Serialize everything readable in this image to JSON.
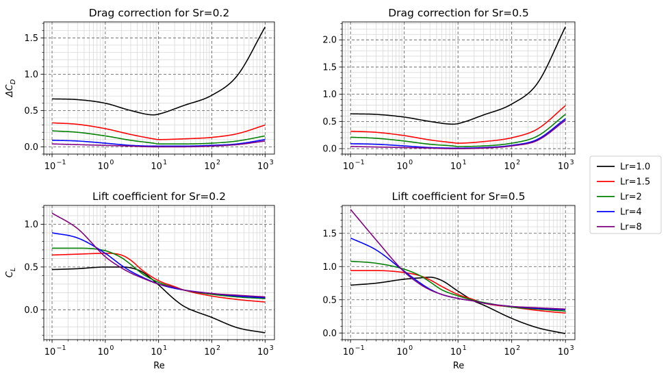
{
  "chart_data": [
    {
      "type": "line",
      "title": "Drag correction for Sr=0.2",
      "xlabel": "",
      "ylabel": "ΔC_D",
      "xscale": "log",
      "xlim": [
        0.07,
        1500
      ],
      "ylim": [
        -0.1,
        1.72
      ],
      "xticks": [
        0.1,
        1,
        10,
        100,
        1000
      ],
      "xtick_labels": [
        "10",
        "10",
        "10",
        "10",
        "10"
      ],
      "xtick_exponents": [
        "−1",
        "0",
        "1",
        "2",
        "3"
      ],
      "yticks": [
        0,
        0.5,
        1,
        1.5
      ],
      "ytick_labels": [
        "0.0",
        "0.5",
        "1.0",
        "1.5"
      ],
      "grid": true,
      "x": [
        0.1,
        0.3,
        1,
        3,
        8,
        10,
        30,
        100,
        300,
        1000
      ],
      "series": [
        {
          "name": "Lr=1.0",
          "color": "#000000",
          "values": [
            0.66,
            0.65,
            0.6,
            0.5,
            0.44,
            0.45,
            0.57,
            0.71,
            0.98,
            1.65
          ]
        },
        {
          "name": "Lr=1.5",
          "color": "#ff0000",
          "values": [
            0.33,
            0.31,
            0.25,
            0.17,
            0.11,
            0.1,
            0.11,
            0.13,
            0.18,
            0.3
          ]
        },
        {
          "name": "Lr=2",
          "color": "#008000",
          "values": [
            0.22,
            0.2,
            0.15,
            0.09,
            0.05,
            0.04,
            0.04,
            0.05,
            0.08,
            0.15
          ]
        },
        {
          "name": "Lr=4",
          "color": "#0000ff",
          "values": [
            0.09,
            0.08,
            0.05,
            0.02,
            0.01,
            0.01,
            0.01,
            0.02,
            0.04,
            0.1
          ]
        },
        {
          "name": "Lr=8",
          "color": "#800080",
          "values": [
            0.04,
            0.03,
            0.02,
            0.01,
            0.0,
            0.0,
            0.0,
            0.01,
            0.03,
            0.08
          ]
        }
      ]
    },
    {
      "type": "line",
      "title": "Drag correction for Sr=0.5",
      "xlabel": "",
      "ylabel": "",
      "xscale": "log",
      "xlim": [
        0.07,
        1500
      ],
      "ylim": [
        -0.1,
        2.33
      ],
      "xticks": [
        0.1,
        1,
        10,
        100,
        1000
      ],
      "xtick_labels": [
        "10",
        "10",
        "10",
        "10",
        "10"
      ],
      "xtick_exponents": [
        "−1",
        "0",
        "1",
        "2",
        "3"
      ],
      "yticks": [
        0,
        0.5,
        1,
        1.5,
        2
      ],
      "ytick_labels": [
        "0.0",
        "0.5",
        "1.0",
        "1.5",
        "2.0"
      ],
      "grid": true,
      "x": [
        0.1,
        0.3,
        1,
        3,
        8,
        10,
        30,
        100,
        300,
        1000
      ],
      "series": [
        {
          "name": "Lr=1.0",
          "color": "#000000",
          "values": [
            0.64,
            0.63,
            0.58,
            0.5,
            0.45,
            0.46,
            0.62,
            0.82,
            1.2,
            2.24
          ]
        },
        {
          "name": "Lr=1.5",
          "color": "#ff0000",
          "values": [
            0.32,
            0.3,
            0.24,
            0.16,
            0.11,
            0.1,
            0.13,
            0.2,
            0.36,
            0.79
          ]
        },
        {
          "name": "Lr=2",
          "color": "#008000",
          "values": [
            0.21,
            0.19,
            0.14,
            0.08,
            0.05,
            0.04,
            0.05,
            0.1,
            0.23,
            0.63
          ]
        },
        {
          "name": "Lr=4",
          "color": "#0000ff",
          "values": [
            0.09,
            0.08,
            0.05,
            0.02,
            0.01,
            0.01,
            0.02,
            0.06,
            0.17,
            0.55
          ]
        },
        {
          "name": "Lr=8",
          "color": "#800080",
          "values": [
            0.04,
            0.03,
            0.02,
            0.01,
            0.0,
            0.0,
            0.01,
            0.05,
            0.15,
            0.52
          ]
        }
      ]
    },
    {
      "type": "line",
      "title": "Lift coefficient for Sr=0.2",
      "xlabel": "Re",
      "ylabel": "C_L",
      "xscale": "log",
      "xlim": [
        0.07,
        1500
      ],
      "ylim": [
        -0.35,
        1.22
      ],
      "xticks": [
        0.1,
        1,
        10,
        100,
        1000
      ],
      "xtick_labels": [
        "10",
        "10",
        "10",
        "10",
        "10"
      ],
      "xtick_exponents": [
        "−1",
        "0",
        "1",
        "2",
        "3"
      ],
      "yticks": [
        0,
        0.5,
        1
      ],
      "ytick_labels": [
        "0.0",
        "0.5",
        "1.0"
      ],
      "grid": true,
      "x": [
        0.1,
        0.3,
        1,
        2,
        3,
        5,
        10,
        20,
        30,
        100,
        300,
        1000
      ],
      "series": [
        {
          "name": "Lr=1.0",
          "color": "#000000",
          "values": [
            0.47,
            0.48,
            0.5,
            0.5,
            0.49,
            0.44,
            0.29,
            0.12,
            0.04,
            -0.09,
            -0.21,
            -0.27
          ]
        },
        {
          "name": "Lr=1.5",
          "color": "#ff0000",
          "values": [
            0.64,
            0.65,
            0.66,
            0.64,
            0.58,
            0.46,
            0.34,
            0.27,
            0.23,
            0.16,
            0.12,
            0.09
          ]
        },
        {
          "name": "Lr=2",
          "color": "#008000",
          "values": [
            0.72,
            0.72,
            0.69,
            0.61,
            0.53,
            0.42,
            0.32,
            0.26,
            0.23,
            0.18,
            0.15,
            0.13
          ]
        },
        {
          "name": "Lr=4",
          "color": "#0000ff",
          "values": [
            0.9,
            0.84,
            0.66,
            0.52,
            0.45,
            0.38,
            0.3,
            0.25,
            0.23,
            0.19,
            0.16,
            0.14
          ]
        },
        {
          "name": "Lr=8",
          "color": "#800080",
          "values": [
            1.13,
            0.95,
            0.62,
            0.49,
            0.43,
            0.37,
            0.3,
            0.26,
            0.23,
            0.19,
            0.17,
            0.15
          ]
        }
      ]
    },
    {
      "type": "line",
      "title": "Lift coefficient for Sr=0.5",
      "xlabel": "Re",
      "ylabel": "",
      "xscale": "log",
      "xlim": [
        0.07,
        1500
      ],
      "ylim": [
        -0.1,
        1.92
      ],
      "xticks": [
        0.1,
        1,
        10,
        100,
        1000
      ],
      "xtick_labels": [
        "10",
        "10",
        "10",
        "10",
        "10"
      ],
      "xtick_exponents": [
        "−1",
        "0",
        "1",
        "2",
        "3"
      ],
      "yticks": [
        0,
        0.5,
        1,
        1.5
      ],
      "ytick_labels": [
        "0.0",
        "0.5",
        "1.0",
        "1.5"
      ],
      "grid": true,
      "x": [
        0.1,
        0.3,
        1,
        2,
        3,
        5,
        10,
        20,
        30,
        100,
        300,
        1000
      ],
      "series": [
        {
          "name": "Lr=1.0",
          "color": "#000000",
          "values": [
            0.72,
            0.75,
            0.81,
            0.83,
            0.84,
            0.79,
            0.63,
            0.48,
            0.42,
            0.22,
            0.08,
            -0.01
          ]
        },
        {
          "name": "Lr=1.5",
          "color": "#ff0000",
          "values": [
            0.94,
            0.94,
            0.91,
            0.86,
            0.8,
            0.7,
            0.58,
            0.5,
            0.45,
            0.39,
            0.34,
            0.3
          ]
        },
        {
          "name": "Lr=2",
          "color": "#008000",
          "values": [
            1.08,
            1.05,
            0.96,
            0.86,
            0.77,
            0.65,
            0.56,
            0.49,
            0.46,
            0.39,
            0.36,
            0.33
          ]
        },
        {
          "name": "Lr=4",
          "color": "#0000ff",
          "values": [
            1.43,
            1.25,
            0.93,
            0.75,
            0.66,
            0.58,
            0.52,
            0.48,
            0.45,
            0.4,
            0.37,
            0.35
          ]
        },
        {
          "name": "Lr=8",
          "color": "#800080",
          "values": [
            1.86,
            1.4,
            0.92,
            0.73,
            0.65,
            0.58,
            0.52,
            0.48,
            0.45,
            0.4,
            0.38,
            0.36
          ]
        }
      ]
    }
  ],
  "legend": {
    "placement": "right",
    "entries": [
      {
        "label": "Lr=1.0",
        "color": "#000000"
      },
      {
        "label": "Lr=1.5",
        "color": "#ff0000"
      },
      {
        "label": "Lr=2",
        "color": "#008000"
      },
      {
        "label": "Lr=4",
        "color": "#0000ff"
      },
      {
        "label": "Lr=8",
        "color": "#800080"
      }
    ]
  }
}
